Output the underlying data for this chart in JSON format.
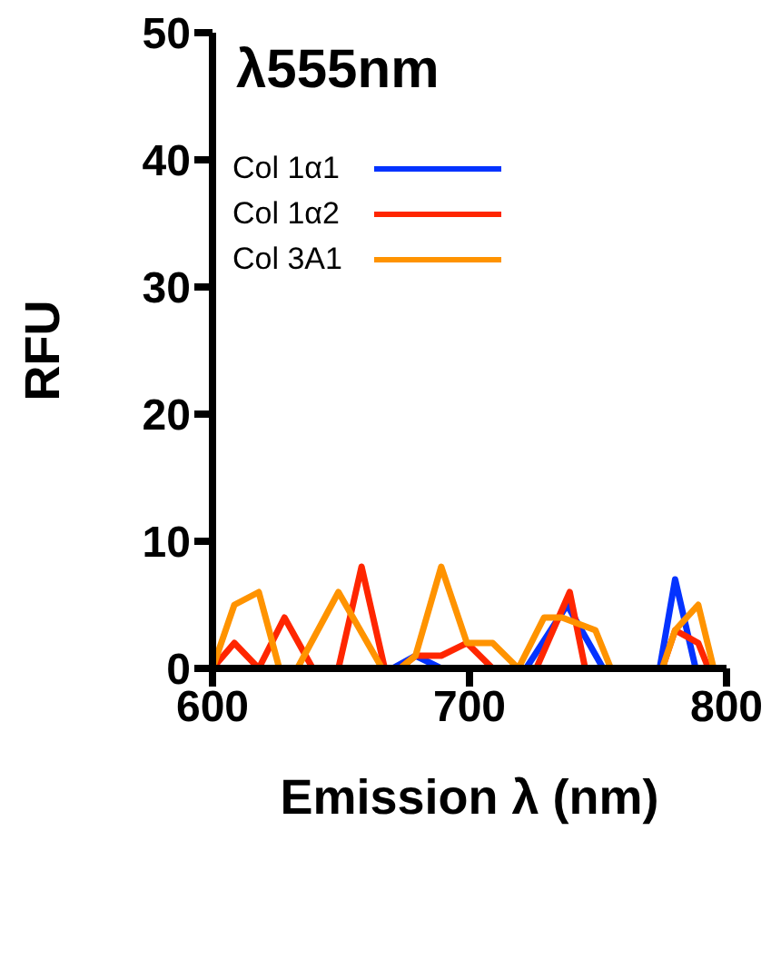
{
  "chart_data": {
    "type": "line",
    "title": "λ555nm",
    "xlabel": "Emission λ (nm)",
    "ylabel": "RFU",
    "xlim": [
      600,
      800
    ],
    "xticks": [
      600,
      700,
      800
    ],
    "ylim": [
      0,
      50
    ],
    "yticks": [
      0,
      10,
      20,
      30,
      40,
      50
    ],
    "grid": false,
    "legend": "top left",
    "marker": "none",
    "line_style": "solid",
    "series": [
      {
        "name": "Col 1α1",
        "color": "#0433ff",
        "x": [
          670,
          679,
          689,
          722,
          738,
          752,
          774,
          780,
          788
        ],
        "values": [
          0,
          1,
          0,
          0,
          5,
          0,
          0,
          7,
          0
        ]
      },
      {
        "name": "Col 1α2",
        "color": "#ff2600",
        "x": [
          600,
          608.5,
          618,
          628,
          639,
          649,
          658,
          667,
          673,
          679,
          689,
          699,
          709,
          726,
          739,
          745,
          775,
          780,
          789,
          793
        ],
        "values": [
          0,
          2,
          0,
          4,
          0,
          0,
          8,
          0,
          0,
          1,
          1,
          2,
          0,
          0,
          6,
          0,
          0,
          3,
          2,
          0
        ]
      },
      {
        "name": "Col 3A1",
        "color": "#ff9300",
        "x": [
          600,
          608.5,
          618,
          626,
          633,
          649,
          666,
          673,
          679,
          689,
          699,
          709,
          719,
          729,
          736,
          749,
          755,
          775,
          780,
          789,
          795
        ],
        "values": [
          0,
          5,
          6,
          0,
          0,
          6,
          0,
          0,
          1,
          8,
          2,
          2,
          0,
          4,
          4,
          3,
          0,
          0,
          3,
          5,
          0
        ]
      }
    ]
  }
}
